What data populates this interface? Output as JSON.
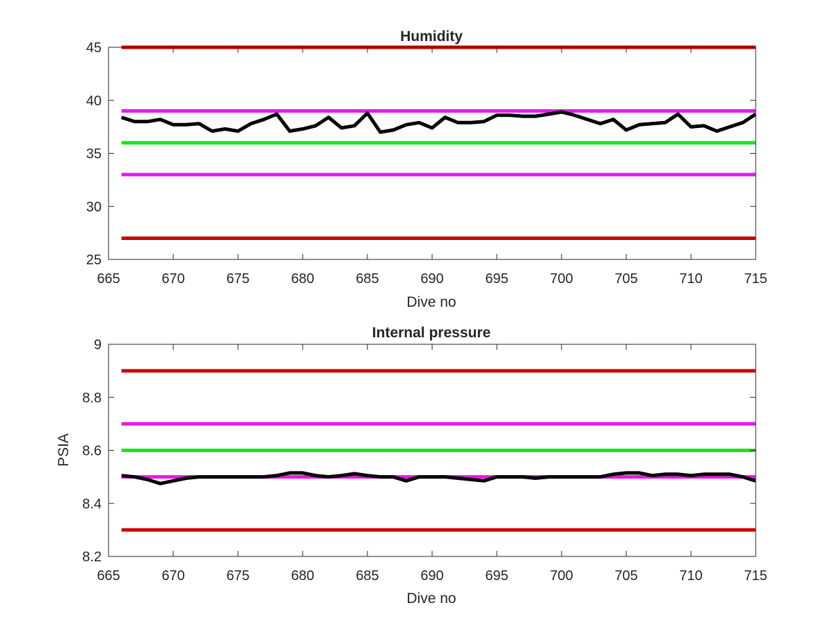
{
  "chart_data": [
    {
      "type": "line",
      "title": "Humidity",
      "xlabel": "Dive no",
      "ylabel": "",
      "xlim": [
        665,
        715
      ],
      "ylim": [
        25,
        45
      ],
      "xticks": [
        665,
        670,
        675,
        680,
        685,
        690,
        695,
        700,
        705,
        710,
        715
      ],
      "yticks": [
        25,
        30,
        35,
        40,
        45
      ],
      "grid": false,
      "reference_lines": [
        {
          "y": 45,
          "color": "#cc0000"
        },
        {
          "y": 39,
          "color": "#e619e6"
        },
        {
          "y": 36,
          "color": "#19e619"
        },
        {
          "y": 33,
          "color": "#e619e6"
        },
        {
          "y": 27,
          "color": "#cc0000"
        }
      ],
      "series": [
        {
          "color": "#000000",
          "x": [
            666,
            667,
            668,
            669,
            670,
            671,
            672,
            673,
            674,
            675,
            676,
            677,
            678,
            679,
            680,
            681,
            682,
            683,
            684,
            685,
            686,
            687,
            688,
            689,
            690,
            691,
            692,
            693,
            694,
            695,
            696,
            697,
            698,
            699,
            700,
            701,
            702,
            703,
            704,
            705,
            706,
            707,
            708,
            709,
            710,
            711,
            712,
            713,
            714,
            715
          ],
          "y": [
            38.4,
            38.0,
            38.0,
            38.2,
            37.7,
            37.7,
            37.8,
            37.1,
            37.3,
            37.1,
            37.8,
            38.2,
            38.7,
            37.1,
            37.3,
            37.6,
            38.4,
            37.4,
            37.6,
            38.8,
            37.0,
            37.2,
            37.7,
            37.9,
            37.4,
            38.4,
            37.9,
            37.9,
            38.0,
            38.6,
            38.6,
            38.5,
            38.5,
            38.7,
            38.9,
            38.6,
            38.2,
            37.8,
            38.2,
            37.2,
            37.7,
            37.8,
            37.9,
            38.7,
            37.5,
            37.6,
            37.1,
            37.5,
            37.9,
            38.7
          ]
        }
      ]
    },
    {
      "type": "line",
      "title": "Internal pressure",
      "xlabel": "Dive no",
      "ylabel": "PSIA",
      "xlim": [
        665,
        715
      ],
      "ylim": [
        8.2,
        9.0
      ],
      "xticks": [
        665,
        670,
        675,
        680,
        685,
        690,
        695,
        700,
        705,
        710,
        715
      ],
      "yticks": [
        8.2,
        8.4,
        8.6,
        8.8,
        9
      ],
      "ytick_labels": [
        "8.2",
        "8.4",
        "8.6",
        "8.8",
        "9"
      ],
      "grid": false,
      "reference_lines": [
        {
          "y": 8.9,
          "color": "#cc0000"
        },
        {
          "y": 8.7,
          "color": "#e619e6"
        },
        {
          "y": 8.6,
          "color": "#19e619"
        },
        {
          "y": 8.5,
          "color": "#e619e6"
        },
        {
          "y": 8.3,
          "color": "#cc0000"
        }
      ],
      "series": [
        {
          "color": "#000000",
          "x": [
            666,
            667,
            668,
            669,
            670,
            671,
            672,
            673,
            674,
            675,
            676,
            677,
            678,
            679,
            680,
            681,
            682,
            683,
            684,
            685,
            686,
            687,
            688,
            689,
            690,
            691,
            692,
            693,
            694,
            695,
            696,
            697,
            698,
            699,
            700,
            701,
            702,
            703,
            704,
            705,
            706,
            707,
            708,
            709,
            710,
            711,
            712,
            713,
            714,
            715
          ],
          "y": [
            8.505,
            8.5,
            8.49,
            8.475,
            8.485,
            8.495,
            8.5,
            8.5,
            8.5,
            8.5,
            8.5,
            8.5,
            8.505,
            8.515,
            8.515,
            8.505,
            8.5,
            8.505,
            8.512,
            8.505,
            8.5,
            8.5,
            8.485,
            8.5,
            8.5,
            8.5,
            8.495,
            8.49,
            8.485,
            8.5,
            8.5,
            8.5,
            8.495,
            8.5,
            8.5,
            8.5,
            8.5,
            8.5,
            8.51,
            8.515,
            8.515,
            8.505,
            8.51,
            8.51,
            8.505,
            8.51,
            8.51,
            8.51,
            8.5,
            8.485
          ]
        }
      ]
    }
  ]
}
